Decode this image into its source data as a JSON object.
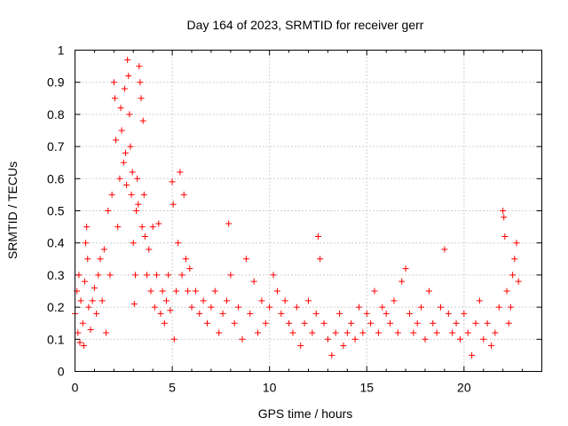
{
  "chart_data": {
    "type": "scatter",
    "title": "Day 164 of 2023, SRMTID for receiver gerr",
    "xlabel": "GPS time / hours",
    "ylabel": "SRMTID / TECUs",
    "xlim": [
      0,
      24
    ],
    "ylim": [
      0,
      1
    ],
    "xticks": [
      0,
      5,
      10,
      15,
      20
    ],
    "yticks": [
      0,
      0.1,
      0.2,
      0.3,
      0.4,
      0.5,
      0.6,
      0.7,
      0.8,
      0.9,
      1
    ],
    "xtick_labels": [
      "0",
      "5",
      "10",
      "15",
      "20"
    ],
    "ytick_labels": [
      "0",
      "0.1",
      "0.2",
      "0.3",
      "0.4",
      "0.5",
      "0.6",
      "0.7",
      "0.8",
      "0.9",
      "1"
    ],
    "grid": true,
    "marker": "+",
    "color": "#ff0000",
    "series": [
      {
        "name": "SRMTID",
        "points": [
          [
            0.0,
            0.18
          ],
          [
            0.1,
            0.25
          ],
          [
            0.15,
            0.12
          ],
          [
            0.2,
            0.3
          ],
          [
            0.25,
            0.09
          ],
          [
            0.3,
            0.22
          ],
          [
            0.4,
            0.15
          ],
          [
            0.45,
            0.08
          ],
          [
            0.5,
            0.28
          ],
          [
            0.55,
            0.4
          ],
          [
            0.6,
            0.45
          ],
          [
            0.65,
            0.35
          ],
          [
            0.7,
            0.2
          ],
          [
            0.8,
            0.13
          ],
          [
            0.9,
            0.22
          ],
          [
            1.0,
            0.26
          ],
          [
            1.1,
            0.18
          ],
          [
            1.2,
            0.3
          ],
          [
            1.3,
            0.35
          ],
          [
            1.4,
            0.22
          ],
          [
            1.5,
            0.38
          ],
          [
            1.6,
            0.12
          ],
          [
            1.7,
            0.5
          ],
          [
            1.8,
            0.3
          ],
          [
            1.9,
            0.55
          ],
          [
            2.0,
            0.9
          ],
          [
            2.05,
            0.85
          ],
          [
            2.1,
            0.72
          ],
          [
            2.2,
            0.45
          ],
          [
            2.3,
            0.6
          ],
          [
            2.35,
            0.82
          ],
          [
            2.4,
            0.75
          ],
          [
            2.5,
            0.65
          ],
          [
            2.55,
            0.88
          ],
          [
            2.6,
            0.68
          ],
          [
            2.65,
            0.58
          ],
          [
            2.7,
            0.97
          ],
          [
            2.75,
            0.92
          ],
          [
            2.8,
            0.8
          ],
          [
            2.85,
            0.7
          ],
          [
            2.9,
            0.55
          ],
          [
            2.95,
            0.62
          ],
          [
            3.0,
            0.4
          ],
          [
            3.05,
            0.21
          ],
          [
            3.1,
            0.3
          ],
          [
            3.15,
            0.5
          ],
          [
            3.2,
            0.6
          ],
          [
            3.25,
            0.52
          ],
          [
            3.3,
            0.95
          ],
          [
            3.35,
            0.9
          ],
          [
            3.4,
            0.85
          ],
          [
            3.45,
            0.45
          ],
          [
            3.5,
            0.78
          ],
          [
            3.55,
            0.55
          ],
          [
            3.6,
            0.42
          ],
          [
            3.7,
            0.3
          ],
          [
            3.8,
            0.38
          ],
          [
            3.9,
            0.25
          ],
          [
            4.0,
            0.45
          ],
          [
            4.1,
            0.2
          ],
          [
            4.2,
            0.3
          ],
          [
            4.3,
            0.46
          ],
          [
            4.4,
            0.18
          ],
          [
            4.5,
            0.25
          ],
          [
            4.6,
            0.15
          ],
          [
            4.7,
            0.22
          ],
          [
            4.8,
            0.3
          ],
          [
            4.9,
            0.19
          ],
          [
            5.0,
            0.59
          ],
          [
            5.05,
            0.52
          ],
          [
            5.1,
            0.1
          ],
          [
            5.2,
            0.25
          ],
          [
            5.3,
            0.4
          ],
          [
            5.4,
            0.62
          ],
          [
            5.5,
            0.3
          ],
          [
            5.6,
            0.55
          ],
          [
            5.7,
            0.35
          ],
          [
            5.8,
            0.25
          ],
          [
            5.9,
            0.32
          ],
          [
            6.0,
            0.2
          ],
          [
            6.2,
            0.25
          ],
          [
            6.4,
            0.18
          ],
          [
            6.6,
            0.22
          ],
          [
            6.8,
            0.15
          ],
          [
            7.0,
            0.2
          ],
          [
            7.2,
            0.25
          ],
          [
            7.4,
            0.12
          ],
          [
            7.6,
            0.18
          ],
          [
            7.8,
            0.22
          ],
          [
            7.9,
            0.46
          ],
          [
            8.0,
            0.3
          ],
          [
            8.2,
            0.15
          ],
          [
            8.4,
            0.2
          ],
          [
            8.6,
            0.1
          ],
          [
            8.8,
            0.35
          ],
          [
            9.0,
            0.18
          ],
          [
            9.2,
            0.28
          ],
          [
            9.4,
            0.12
          ],
          [
            9.6,
            0.22
          ],
          [
            9.8,
            0.15
          ],
          [
            10.0,
            0.2
          ],
          [
            10.2,
            0.3
          ],
          [
            10.4,
            0.25
          ],
          [
            10.6,
            0.18
          ],
          [
            10.8,
            0.22
          ],
          [
            11.0,
            0.15
          ],
          [
            11.2,
            0.12
          ],
          [
            11.4,
            0.2
          ],
          [
            11.6,
            0.08
          ],
          [
            11.8,
            0.15
          ],
          [
            12.0,
            0.22
          ],
          [
            12.2,
            0.12
          ],
          [
            12.4,
            0.18
          ],
          [
            12.5,
            0.42
          ],
          [
            12.6,
            0.35
          ],
          [
            12.8,
            0.15
          ],
          [
            13.0,
            0.1
          ],
          [
            13.2,
            0.05
          ],
          [
            13.4,
            0.12
          ],
          [
            13.6,
            0.18
          ],
          [
            13.8,
            0.08
          ],
          [
            14.0,
            0.12
          ],
          [
            14.2,
            0.15
          ],
          [
            14.4,
            0.1
          ],
          [
            14.6,
            0.2
          ],
          [
            14.8,
            0.12
          ],
          [
            15.0,
            0.18
          ],
          [
            15.2,
            0.15
          ],
          [
            15.4,
            0.25
          ],
          [
            15.6,
            0.12
          ],
          [
            15.8,
            0.2
          ],
          [
            16.0,
            0.18
          ],
          [
            16.2,
            0.15
          ],
          [
            16.4,
            0.22
          ],
          [
            16.6,
            0.12
          ],
          [
            16.8,
            0.28
          ],
          [
            17.0,
            0.32
          ],
          [
            17.2,
            0.18
          ],
          [
            17.4,
            0.12
          ],
          [
            17.6,
            0.15
          ],
          [
            17.8,
            0.2
          ],
          [
            18.0,
            0.1
          ],
          [
            18.2,
            0.25
          ],
          [
            18.4,
            0.15
          ],
          [
            18.6,
            0.12
          ],
          [
            18.8,
            0.2
          ],
          [
            19.0,
            0.38
          ],
          [
            19.2,
            0.18
          ],
          [
            19.4,
            0.12
          ],
          [
            19.6,
            0.15
          ],
          [
            19.8,
            0.1
          ],
          [
            20.0,
            0.18
          ],
          [
            20.2,
            0.12
          ],
          [
            20.4,
            0.05
          ],
          [
            20.6,
            0.15
          ],
          [
            20.8,
            0.22
          ],
          [
            21.0,
            0.1
          ],
          [
            21.2,
            0.15
          ],
          [
            21.4,
            0.08
          ],
          [
            21.6,
            0.12
          ],
          [
            21.8,
            0.2
          ],
          [
            22.0,
            0.5
          ],
          [
            22.05,
            0.48
          ],
          [
            22.1,
            0.42
          ],
          [
            22.2,
            0.25
          ],
          [
            22.3,
            0.15
          ],
          [
            22.4,
            0.2
          ],
          [
            22.5,
            0.3
          ],
          [
            22.6,
            0.35
          ],
          [
            22.7,
            0.4
          ],
          [
            22.8,
            0.28
          ]
        ]
      }
    ]
  }
}
